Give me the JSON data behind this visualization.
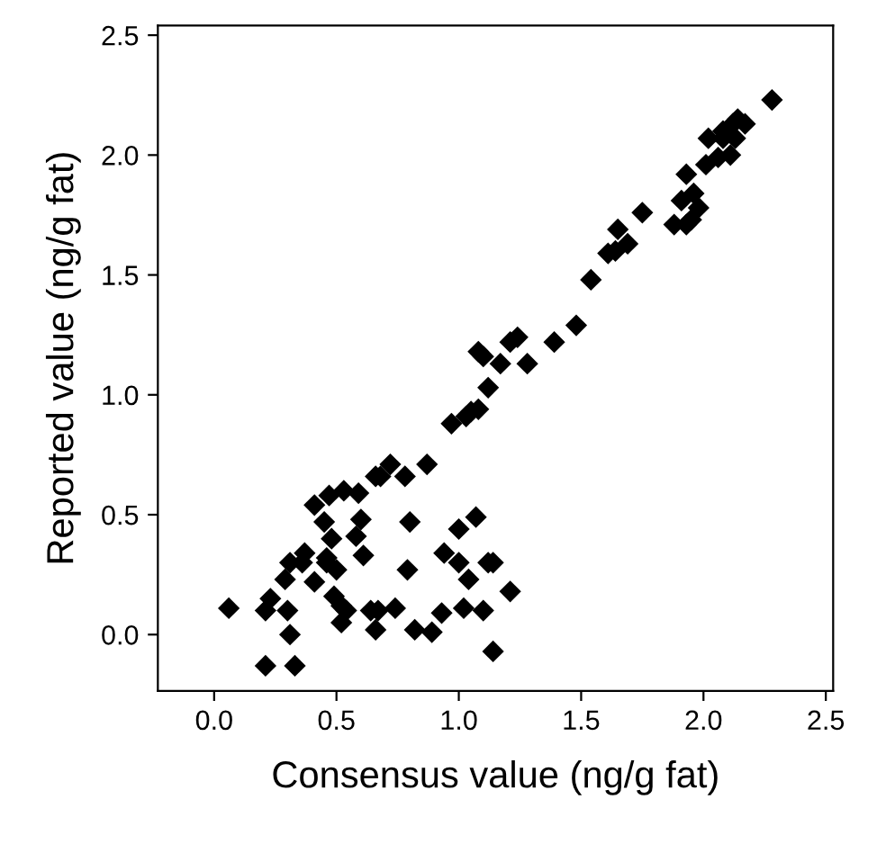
{
  "chart_data": {
    "type": "scatter",
    "xlabel": "Consensus value (ng/g fat)",
    "ylabel": "Reported value (ng/g fat)",
    "xlim": [
      -0.23,
      2.53
    ],
    "ylim": [
      -0.235,
      2.54
    ],
    "xticks": [
      {
        "value": 0,
        "label": "0.0"
      },
      0.5,
      {
        "value": 1,
        "label": "1.0"
      },
      1.5,
      {
        "value": 2,
        "label": "2.0"
      },
      2.5
    ],
    "yticks": [
      {
        "value": 0,
        "label": "0.0"
      },
      0.5,
      {
        "value": 1,
        "label": "1.0"
      },
      1.5,
      {
        "value": 2,
        "label": "2.0"
      },
      2.5
    ],
    "grid": false,
    "marker": "diamond",
    "legend": false,
    "series": [
      {
        "color": "#000000",
        "x": [
          0.06,
          0.21,
          0.33,
          0.21,
          0.23,
          0.3,
          0.31,
          0.29,
          0.31,
          0.37,
          0.36,
          0.41,
          0.41,
          0.46,
          0.46,
          0.45,
          0.48,
          0.5,
          0.49,
          0.52,
          0.52,
          0.54,
          0.47,
          0.53,
          0.59,
          0.58,
          0.6,
          0.61,
          0.64,
          0.67,
          0.66,
          0.66,
          0.68,
          0.72,
          0.78,
          0.74,
          0.8,
          0.79,
          0.82,
          0.87,
          0.89,
          0.93,
          0.94,
          0.97,
          1.0,
          1.0,
          1.02,
          1.04,
          1.07,
          1.05,
          1.08,
          1.03,
          1.1,
          1.12,
          1.14,
          1.14,
          1.21,
          1.12,
          1.08,
          1.1,
          1.17,
          1.21,
          1.24,
          1.28,
          1.39,
          1.48,
          1.54,
          1.61,
          1.64,
          1.65,
          1.69,
          1.75,
          1.88,
          1.93,
          1.95,
          1.98,
          1.91,
          1.96,
          1.93,
          2.01,
          2.06,
          2.02,
          2.08,
          2.11,
          2.12,
          2.14,
          2.08,
          2.13,
          2.17,
          2.28
        ],
        "values": [
          0.11,
          -0.13,
          -0.13,
          0.1,
          0.15,
          0.1,
          0.0,
          0.23,
          0.3,
          0.34,
          0.3,
          0.22,
          0.54,
          0.3,
          0.32,
          0.47,
          0.4,
          0.27,
          0.16,
          0.12,
          0.05,
          0.1,
          0.58,
          0.6,
          0.59,
          0.41,
          0.48,
          0.33,
          0.1,
          0.1,
          0.02,
          0.66,
          0.66,
          0.71,
          0.66,
          0.11,
          0.47,
          0.27,
          0.02,
          0.71,
          0.01,
          0.09,
          0.34,
          0.88,
          0.44,
          0.3,
          0.11,
          0.23,
          0.49,
          0.93,
          0.94,
          0.91,
          0.1,
          0.3,
          0.3,
          -0.07,
          0.18,
          1.03,
          1.18,
          1.16,
          1.13,
          1.22,
          1.24,
          1.13,
          1.22,
          1.29,
          1.48,
          1.59,
          1.6,
          1.69,
          1.63,
          1.76,
          1.71,
          1.71,
          1.73,
          1.78,
          1.81,
          1.84,
          1.92,
          1.96,
          1.99,
          2.07,
          2.07,
          2.0,
          2.13,
          2.15,
          2.1,
          2.07,
          2.13,
          2.23
        ]
      }
    ]
  }
}
